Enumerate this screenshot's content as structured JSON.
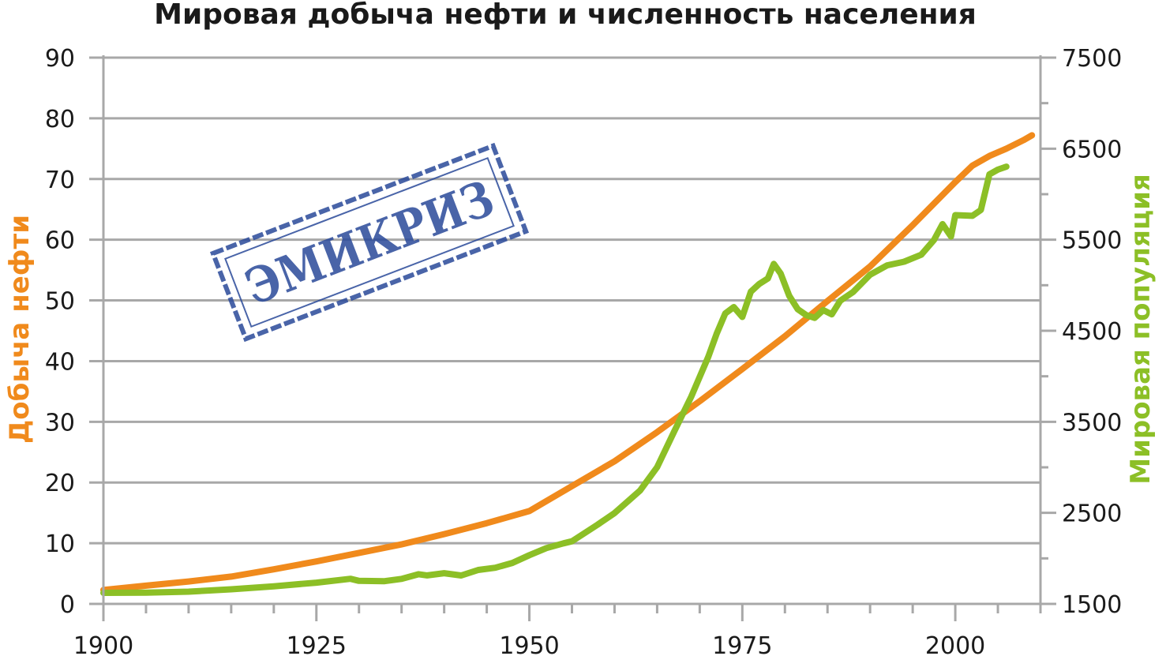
{
  "chart_data": {
    "type": "line",
    "title": "Мировая добыча нефти и численность населения",
    "x": {
      "ticks": [
        1900,
        1925,
        1950,
        1975,
        2000
      ],
      "range": [
        1900,
        2010
      ]
    },
    "y_left": {
      "label": "Добыча нефти",
      "ticks": [
        0,
        10,
        20,
        30,
        40,
        50,
        60,
        70,
        80,
        90
      ],
      "range": [
        0,
        90
      ]
    },
    "y_right": {
      "label": "Мировая популяция",
      "ticks": [
        1500,
        2500,
        3500,
        4500,
        5500,
        6500,
        7500
      ],
      "range": [
        1500,
        7500
      ]
    },
    "grid": true,
    "legend": "none",
    "series": [
      {
        "axis": "left",
        "color": "#f08a1c",
        "points": [
          [
            1900,
            2.3
          ],
          [
            1905,
            3.0
          ],
          [
            1910,
            3.7
          ],
          [
            1915,
            4.5
          ],
          [
            1920,
            5.7
          ],
          [
            1925,
            7.0
          ],
          [
            1930,
            8.4
          ],
          [
            1935,
            9.8
          ],
          [
            1940,
            11.5
          ],
          [
            1945,
            13.3
          ],
          [
            1950,
            15.3
          ],
          [
            1955,
            19.4
          ],
          [
            1960,
            23.5
          ],
          [
            1965,
            28.3
          ],
          [
            1970,
            33.4
          ],
          [
            1975,
            38.7
          ],
          [
            1980,
            44.1
          ],
          [
            1985,
            49.9
          ],
          [
            1990,
            55.6
          ],
          [
            1995,
            62.4
          ],
          [
            2000,
            69.5
          ],
          [
            2002,
            72.2
          ],
          [
            2004,
            73.8
          ],
          [
            2006,
            75.0
          ],
          [
            2008,
            76.4
          ],
          [
            2009,
            77.2
          ]
        ]
      },
      {
        "axis": "right",
        "color": "#8cbf26",
        "points": [
          [
            1900,
            1621
          ],
          [
            1905,
            1624
          ],
          [
            1910,
            1634
          ],
          [
            1915,
            1660
          ],
          [
            1920,
            1693
          ],
          [
            1925,
            1733
          ],
          [
            1929,
            1776
          ],
          [
            1930,
            1753
          ],
          [
            1933,
            1750
          ],
          [
            1935,
            1775
          ],
          [
            1937,
            1826
          ],
          [
            1938,
            1813
          ],
          [
            1940,
            1837
          ],
          [
            1942,
            1812
          ],
          [
            1944,
            1873
          ],
          [
            1946,
            1897
          ],
          [
            1948,
            1950
          ],
          [
            1950,
            2035
          ],
          [
            1952,
            2113
          ],
          [
            1954,
            2165
          ],
          [
            1955,
            2188
          ],
          [
            1958,
            2370
          ],
          [
            1960,
            2498
          ],
          [
            1963,
            2745
          ],
          [
            1965,
            3002
          ],
          [
            1967,
            3394
          ],
          [
            1969,
            3776
          ],
          [
            1971,
            4214
          ],
          [
            1972,
            4470
          ],
          [
            1973,
            4690
          ],
          [
            1974,
            4760
          ],
          [
            1975,
            4652
          ],
          [
            1976,
            4929
          ],
          [
            1977,
            5015
          ],
          [
            1978,
            5074
          ],
          [
            1978.7,
            5234
          ],
          [
            1979.5,
            5128
          ],
          [
            1980.5,
            4884
          ],
          [
            1981.5,
            4737
          ],
          [
            1982.5,
            4672
          ],
          [
            1983.5,
            4641
          ],
          [
            1984.5,
            4727
          ],
          [
            1985.5,
            4680
          ],
          [
            1986.5,
            4830
          ],
          [
            1988,
            4926
          ],
          [
            1990,
            5116
          ],
          [
            1992,
            5219
          ],
          [
            1994,
            5259
          ],
          [
            1996,
            5335
          ],
          [
            1997.5,
            5497
          ],
          [
            1998.5,
            5671
          ],
          [
            1999.5,
            5535
          ],
          [
            2000,
            5770
          ],
          [
            2002,
            5762
          ],
          [
            2003,
            5827
          ],
          [
            2004,
            6218
          ],
          [
            2005,
            6270
          ],
          [
            2006,
            6303
          ]
        ]
      }
    ]
  },
  "stamp": {
    "text": "ЭМИКРИЗ",
    "color": "#2a4a9a"
  }
}
